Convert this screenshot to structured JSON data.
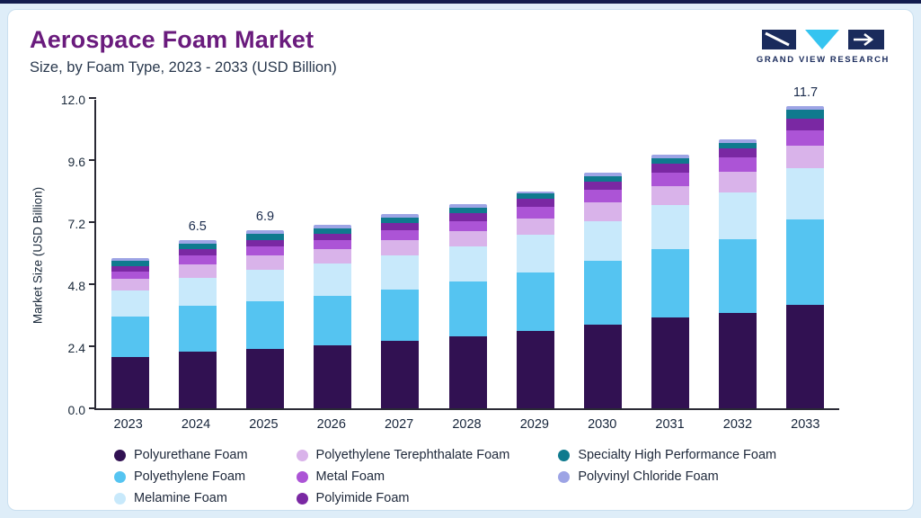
{
  "header": {
    "title": "Aerospace Foam Market",
    "subtitle": "Size, by Foam Type, 2023 - 2033 (USD Billion)"
  },
  "logo": {
    "text": "GRAND VIEW RESEARCH",
    "navy": "#1A2B5C",
    "cyan": "#35C4F0"
  },
  "chart_data": {
    "type": "bar",
    "stacked": true,
    "title": "Aerospace Foam Market Size, by Foam Type, 2023 - 2033 (USD Billion)",
    "xlabel": "",
    "ylabel": "Market Size (USD Billion)",
    "ylim": [
      0,
      12.0
    ],
    "y_ticks": [
      0.0,
      2.4,
      4.8,
      7.2,
      9.6,
      12.0
    ],
    "grid": false,
    "legend_position": "bottom",
    "categories": [
      "2023",
      "2024",
      "2025",
      "2026",
      "2027",
      "2028",
      "2029",
      "2030",
      "2031",
      "2032",
      "2033"
    ],
    "annotations": {
      "2024": "6.5",
      "2025": "6.9",
      "2033": "11.7"
    },
    "totals": [
      5.8,
      6.5,
      6.9,
      7.1,
      7.5,
      7.9,
      8.4,
      9.1,
      9.8,
      10.4,
      11.7
    ],
    "series": [
      {
        "name": "Polyurethane Foam",
        "color": "#311152",
        "values": [
          2.0,
          2.2,
          2.3,
          2.45,
          2.6,
          2.8,
          3.0,
          3.25,
          3.5,
          3.7,
          4.0
        ]
      },
      {
        "name": "Polyethylene Foam",
        "color": "#55C4F1",
        "values": [
          1.55,
          1.75,
          1.85,
          1.9,
          2.0,
          2.1,
          2.25,
          2.45,
          2.65,
          2.85,
          3.3
        ]
      },
      {
        "name": "Melamine Foam",
        "color": "#C8E9FB",
        "values": [
          1.0,
          1.1,
          1.2,
          1.25,
          1.3,
          1.35,
          1.45,
          1.55,
          1.7,
          1.8,
          2.0
        ]
      },
      {
        "name": "Polyethylene Terephthalate Foam",
        "color": "#D9B3EA",
        "values": [
          0.45,
          0.5,
          0.55,
          0.55,
          0.6,
          0.6,
          0.65,
          0.7,
          0.75,
          0.8,
          0.85
        ]
      },
      {
        "name": "Metal Foam",
        "color": "#AC54D6",
        "values": [
          0.3,
          0.35,
          0.35,
          0.35,
          0.4,
          0.4,
          0.45,
          0.5,
          0.5,
          0.55,
          0.6
        ]
      },
      {
        "name": "Polyimide Foam",
        "color": "#7A28A3",
        "values": [
          0.2,
          0.25,
          0.25,
          0.25,
          0.25,
          0.3,
          0.3,
          0.3,
          0.35,
          0.35,
          0.45
        ]
      },
      {
        "name": "Specialty High Performance Foam",
        "color": "#0F7A8E",
        "values": [
          0.2,
          0.22,
          0.25,
          0.2,
          0.22,
          0.2,
          0.2,
          0.23,
          0.23,
          0.22,
          0.35
        ]
      },
      {
        "name": "Polyvinyl Chloride Foam",
        "color": "#9DA4E5",
        "values": [
          0.1,
          0.13,
          0.15,
          0.15,
          0.13,
          0.15,
          0.1,
          0.12,
          0.12,
          0.13,
          0.15
        ]
      }
    ]
  }
}
